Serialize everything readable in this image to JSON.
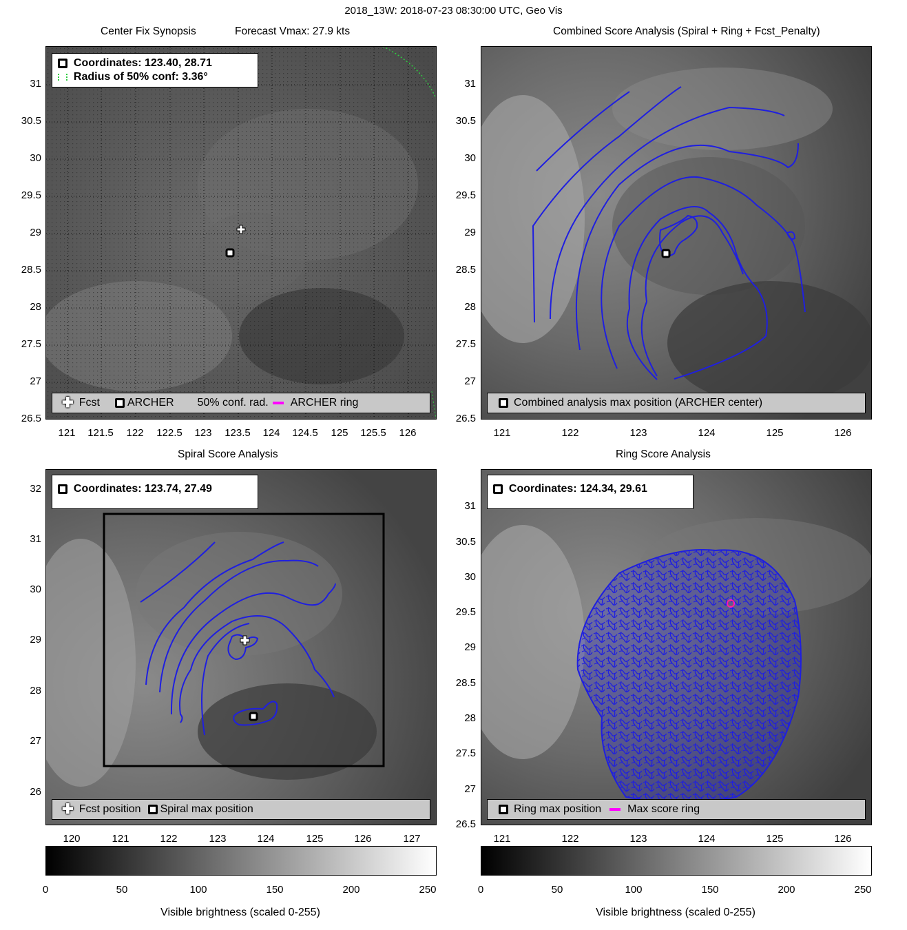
{
  "suptitle": "2018_13W: 2018-07-23 08:30:00 UTC, Geo Vis",
  "panels": {
    "synopsis": {
      "title_left": "Center Fix Synopsis",
      "title_right": "Forecast Vmax: 27.9 kts",
      "coord_line1": "Coordinates: 123.40, 28.71",
      "coord_line2": "Radius of 50% conf: 3.36°",
      "legend": {
        "fcst": "Fcst",
        "archer": "ARCHER",
        "conf": "50% conf. rad.",
        "ring": "ARCHER ring"
      },
      "yticks": [
        "31",
        "30.5",
        "30",
        "29.5",
        "29",
        "28.5",
        "28",
        "27.5",
        "27",
        "26.5"
      ],
      "xticks": [
        "121",
        "121.5",
        "122",
        "122.5",
        "123",
        "123.5",
        "124",
        "124.5",
        "125",
        "125.5",
        "126"
      ]
    },
    "combined": {
      "title": "Combined Score Analysis (Spiral + Ring + Fcst_Penalty)",
      "legend": "Combined analysis max position (ARCHER center)",
      "yticks": [
        "31",
        "30.5",
        "30",
        "29.5",
        "29",
        "28.5",
        "28",
        "27.5",
        "27",
        "26.5"
      ],
      "xticks": [
        "121",
        "122",
        "123",
        "124",
        "125",
        "126"
      ]
    },
    "spiral": {
      "title": "Spiral Score Analysis",
      "coord_line1": "Coordinates: 123.74, 27.49",
      "legend": {
        "fcst": "Fcst position",
        "max": "Spiral max position"
      },
      "yticks": [
        "32",
        "31",
        "30",
        "29",
        "28",
        "27",
        "26"
      ],
      "xticks": [
        "120",
        "121",
        "122",
        "123",
        "124",
        "125",
        "126",
        "127"
      ]
    },
    "ring": {
      "title": "Ring Score Analysis",
      "coord_line1": "Coordinates: 124.34, 29.61",
      "legend": {
        "max": "Ring max position",
        "ring": "Max score ring"
      },
      "yticks": [
        "31",
        "30.5",
        "30",
        "29.5",
        "29",
        "28.5",
        "28",
        "27.5",
        "27",
        "26.5"
      ],
      "xticks": [
        "121",
        "122",
        "123",
        "124",
        "125",
        "126"
      ]
    }
  },
  "colorbar": {
    "ticks": [
      "0",
      "50",
      "100",
      "150",
      "200",
      "250"
    ],
    "label": "Visible brightness (scaled 0-255)"
  },
  "colors": {
    "contour": "#1f1fe0",
    "ring": "#ff00ff",
    "conf": "#2ecc40"
  }
}
